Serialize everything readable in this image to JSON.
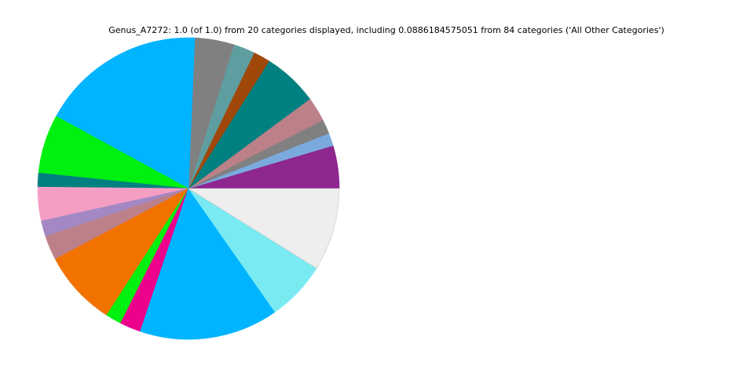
{
  "chart_data": {
    "type": "pie",
    "title": "Genus_A7272: 1.0 (of 1.0) from 20 categories displayed, including 0.0886184575051 from 84 categories ('All Other Categories')",
    "values": [
      0.046,
      0.0136,
      0.0156,
      0.026,
      0.059,
      0.018,
      0.023,
      0.042,
      0.177,
      0.063,
      0.015,
      0.036,
      0.017,
      0.026,
      0.081,
      0.017,
      0.0225,
      0.149,
      0.064,
      0.0886184575051
    ],
    "colors": [
      "#8e278e",
      "#7aaadd",
      "#808080",
      "#bc8089",
      "#008080",
      "#a0480a",
      "#5f9ea0",
      "#808080",
      "#00b4ff",
      "#00f010",
      "#008080",
      "#f59ec4",
      "#a388c4",
      "#bc8089",
      "#f27200",
      "#00f010",
      "#ec008c",
      "#00b4ff",
      "#7aeaf2",
      "#eeeeee"
    ]
  }
}
